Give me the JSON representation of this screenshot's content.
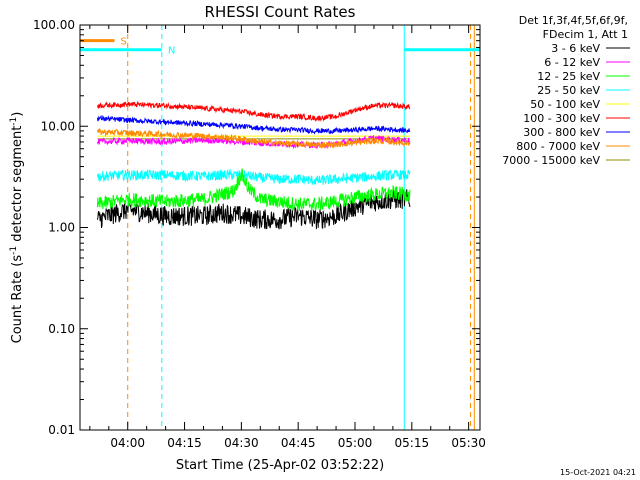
{
  "chart_data": {
    "type": "line",
    "title": "RHESSI Count Rates",
    "xlabel": "Start Time (25-Apr-02 03:52:22)",
    "ylabel_main": "Count Rate (s",
    "ylabel_sup": "-1",
    "ylabel_tail": " detector segment",
    "ylabel_sup2": "-1",
    "ylabel_close": ")",
    "yscale": "log",
    "ylim": [
      0.01,
      100
    ],
    "xlim_minutes": [
      227.4,
      333.0
    ],
    "grid": false,
    "legend_placement": "outside-right",
    "legend_header": [
      "Det 1f,3f,4f,5f,6f,9f,",
      "FDecim 1, Att 1"
    ],
    "x_ticks": [
      {
        "label": "04:00",
        "minutes": 240
      },
      {
        "label": "04:15",
        "minutes": 255
      },
      {
        "label": "04:30",
        "minutes": 270
      },
      {
        "label": "04:45",
        "minutes": 285
      },
      {
        "label": "05:00",
        "minutes": 300
      },
      {
        "label": "05:15",
        "minutes": 315
      },
      {
        "label": "05:30",
        "minutes": 330
      }
    ],
    "y_ticks": [
      {
        "label": "100.00",
        "value": 100
      },
      {
        "label": "10.00",
        "value": 10
      },
      {
        "label": "1.00",
        "value": 1
      },
      {
        "label": "0.10",
        "value": 0.1
      },
      {
        "label": "0.01",
        "value": 0.01
      }
    ],
    "series": [
      {
        "name": "3 - 6 keV",
        "color": "#000000",
        "x_minutes": [
          232.0,
          240.0,
          250.0,
          260.0,
          265.0,
          270.0,
          275.0,
          280.0,
          285.0,
          290.0,
          295.0,
          300.0,
          305.0,
          310.0,
          314.5
        ],
        "y": [
          1.2,
          1.5,
          1.3,
          1.3,
          1.4,
          1.3,
          1.2,
          1.2,
          1.3,
          1.2,
          1.3,
          1.6,
          1.8,
          1.9,
          1.9
        ]
      },
      {
        "name": "6 - 12 keV",
        "color": "#ff00ff",
        "x_minutes": [
          232.0,
          240.0,
          250.0,
          260.0,
          265.0,
          270.0,
          275.0,
          280.0,
          285.0,
          290.0,
          295.0,
          300.0,
          305.0,
          310.0,
          314.5
        ],
        "y": [
          7.0,
          7.2,
          7.0,
          7.3,
          7.2,
          7.0,
          6.8,
          6.7,
          6.6,
          6.5,
          6.7,
          7.2,
          7.6,
          7.4,
          7.2
        ]
      },
      {
        "name": "12 - 25 keV",
        "color": "#00ff00",
        "x_minutes": [
          232.0,
          240.0,
          250.0,
          260.0,
          268.0,
          270.0,
          272.0,
          275.0,
          280.0,
          285.0,
          290.0,
          295.0,
          300.0,
          305.0,
          310.0,
          314.5
        ],
        "y": [
          1.7,
          1.9,
          1.8,
          1.9,
          2.3,
          3.4,
          2.4,
          1.9,
          1.8,
          1.7,
          1.7,
          1.8,
          2.0,
          2.1,
          2.2,
          2.1
        ]
      },
      {
        "name": "25 - 50 keV",
        "color": "#00ffff",
        "x_minutes": [
          232.0,
          240.0,
          250.0,
          260.0,
          265.0,
          270.0,
          275.0,
          280.0,
          285.0,
          290.0,
          295.0,
          300.0,
          305.0,
          310.0,
          314.5
        ],
        "y": [
          3.2,
          3.3,
          3.3,
          3.2,
          3.3,
          3.3,
          3.1,
          3.0,
          3.0,
          2.9,
          3.0,
          3.1,
          3.2,
          3.3,
          3.3
        ]
      },
      {
        "name": "50 - 100 keV",
        "color": "#ffff00",
        "x_minutes": [
          232.0,
          314.5
        ],
        "y": [
          8.0,
          8.0
        ]
      },
      {
        "name": "100 - 300 keV",
        "color": "#ff0000",
        "x_minutes": [
          232.0,
          240.0,
          250.0,
          260.0,
          265.0,
          270.0,
          275.0,
          280.0,
          285.0,
          290.0,
          295.0,
          300.0,
          305.0,
          310.0,
          314.5
        ],
        "y": [
          16.0,
          16.5,
          16.0,
          15.0,
          14.5,
          14.0,
          13.0,
          12.5,
          12.5,
          12.0,
          12.5,
          14.5,
          16.0,
          16.0,
          15.5
        ]
      },
      {
        "name": "300 - 800 keV",
        "color": "#0000ff",
        "x_minutes": [
          232.0,
          240.0,
          250.0,
          260.0,
          265.0,
          270.0,
          275.0,
          280.0,
          285.0,
          290.0,
          295.0,
          300.0,
          305.0,
          310.0,
          314.5
        ],
        "y": [
          12.0,
          11.5,
          11.0,
          10.5,
          10.3,
          10.0,
          9.6,
          9.3,
          9.2,
          9.0,
          9.0,
          9.2,
          9.5,
          9.3,
          9.0
        ]
      },
      {
        "name": "800 - 7000 keV",
        "color": "#ff8c00",
        "x_minutes": [
          232.0,
          240.0,
          250.0,
          260.0,
          265.0,
          270.0,
          275.0,
          280.0,
          285.0,
          290.0,
          295.0,
          300.0,
          305.0,
          310.0,
          314.5
        ],
        "y": [
          8.8,
          8.6,
          8.3,
          8.0,
          7.8,
          7.5,
          7.0,
          6.8,
          6.7,
          6.5,
          6.6,
          6.9,
          7.2,
          7.0,
          6.8
        ]
      },
      {
        "name": "7000 - 15000 keV",
        "color": "#8b8b00",
        "x_minutes": [
          232.0,
          314.5
        ],
        "y": [
          7.5,
          7.5
        ]
      }
    ],
    "flags": [
      {
        "label": "S",
        "color": "#ff8c00",
        "level": 70,
        "from_minutes": 227.4,
        "to_minutes": 236.5
      },
      {
        "label": "N",
        "color": "#00ffff",
        "level": 57,
        "from_minutes": 227.4,
        "to_minutes": 249.0
      }
    ],
    "after_flag": {
      "color": "#00ffff",
      "level": 57,
      "from_minutes": 313.0,
      "to_minutes": 333.0
    },
    "vertical_markers": [
      {
        "color": "#00ffff",
        "style": "solid",
        "minutes": 227.4
      },
      {
        "color": "#ff8c00",
        "style": "dashed",
        "minutes": 240.0
      },
      {
        "color": "#00ffff",
        "style": "dashed",
        "minutes": 249.0
      },
      {
        "color": "#00ffff",
        "style": "solid",
        "minutes": 313.0
      },
      {
        "color": "#ff8c00",
        "style": "dashed",
        "minutes": 330.5
      },
      {
        "color": "#ff8c00",
        "style": "solid",
        "minutes": 331.5
      }
    ]
  },
  "footer": {
    "timestamp": "15-Oct-2021 04:21"
  }
}
